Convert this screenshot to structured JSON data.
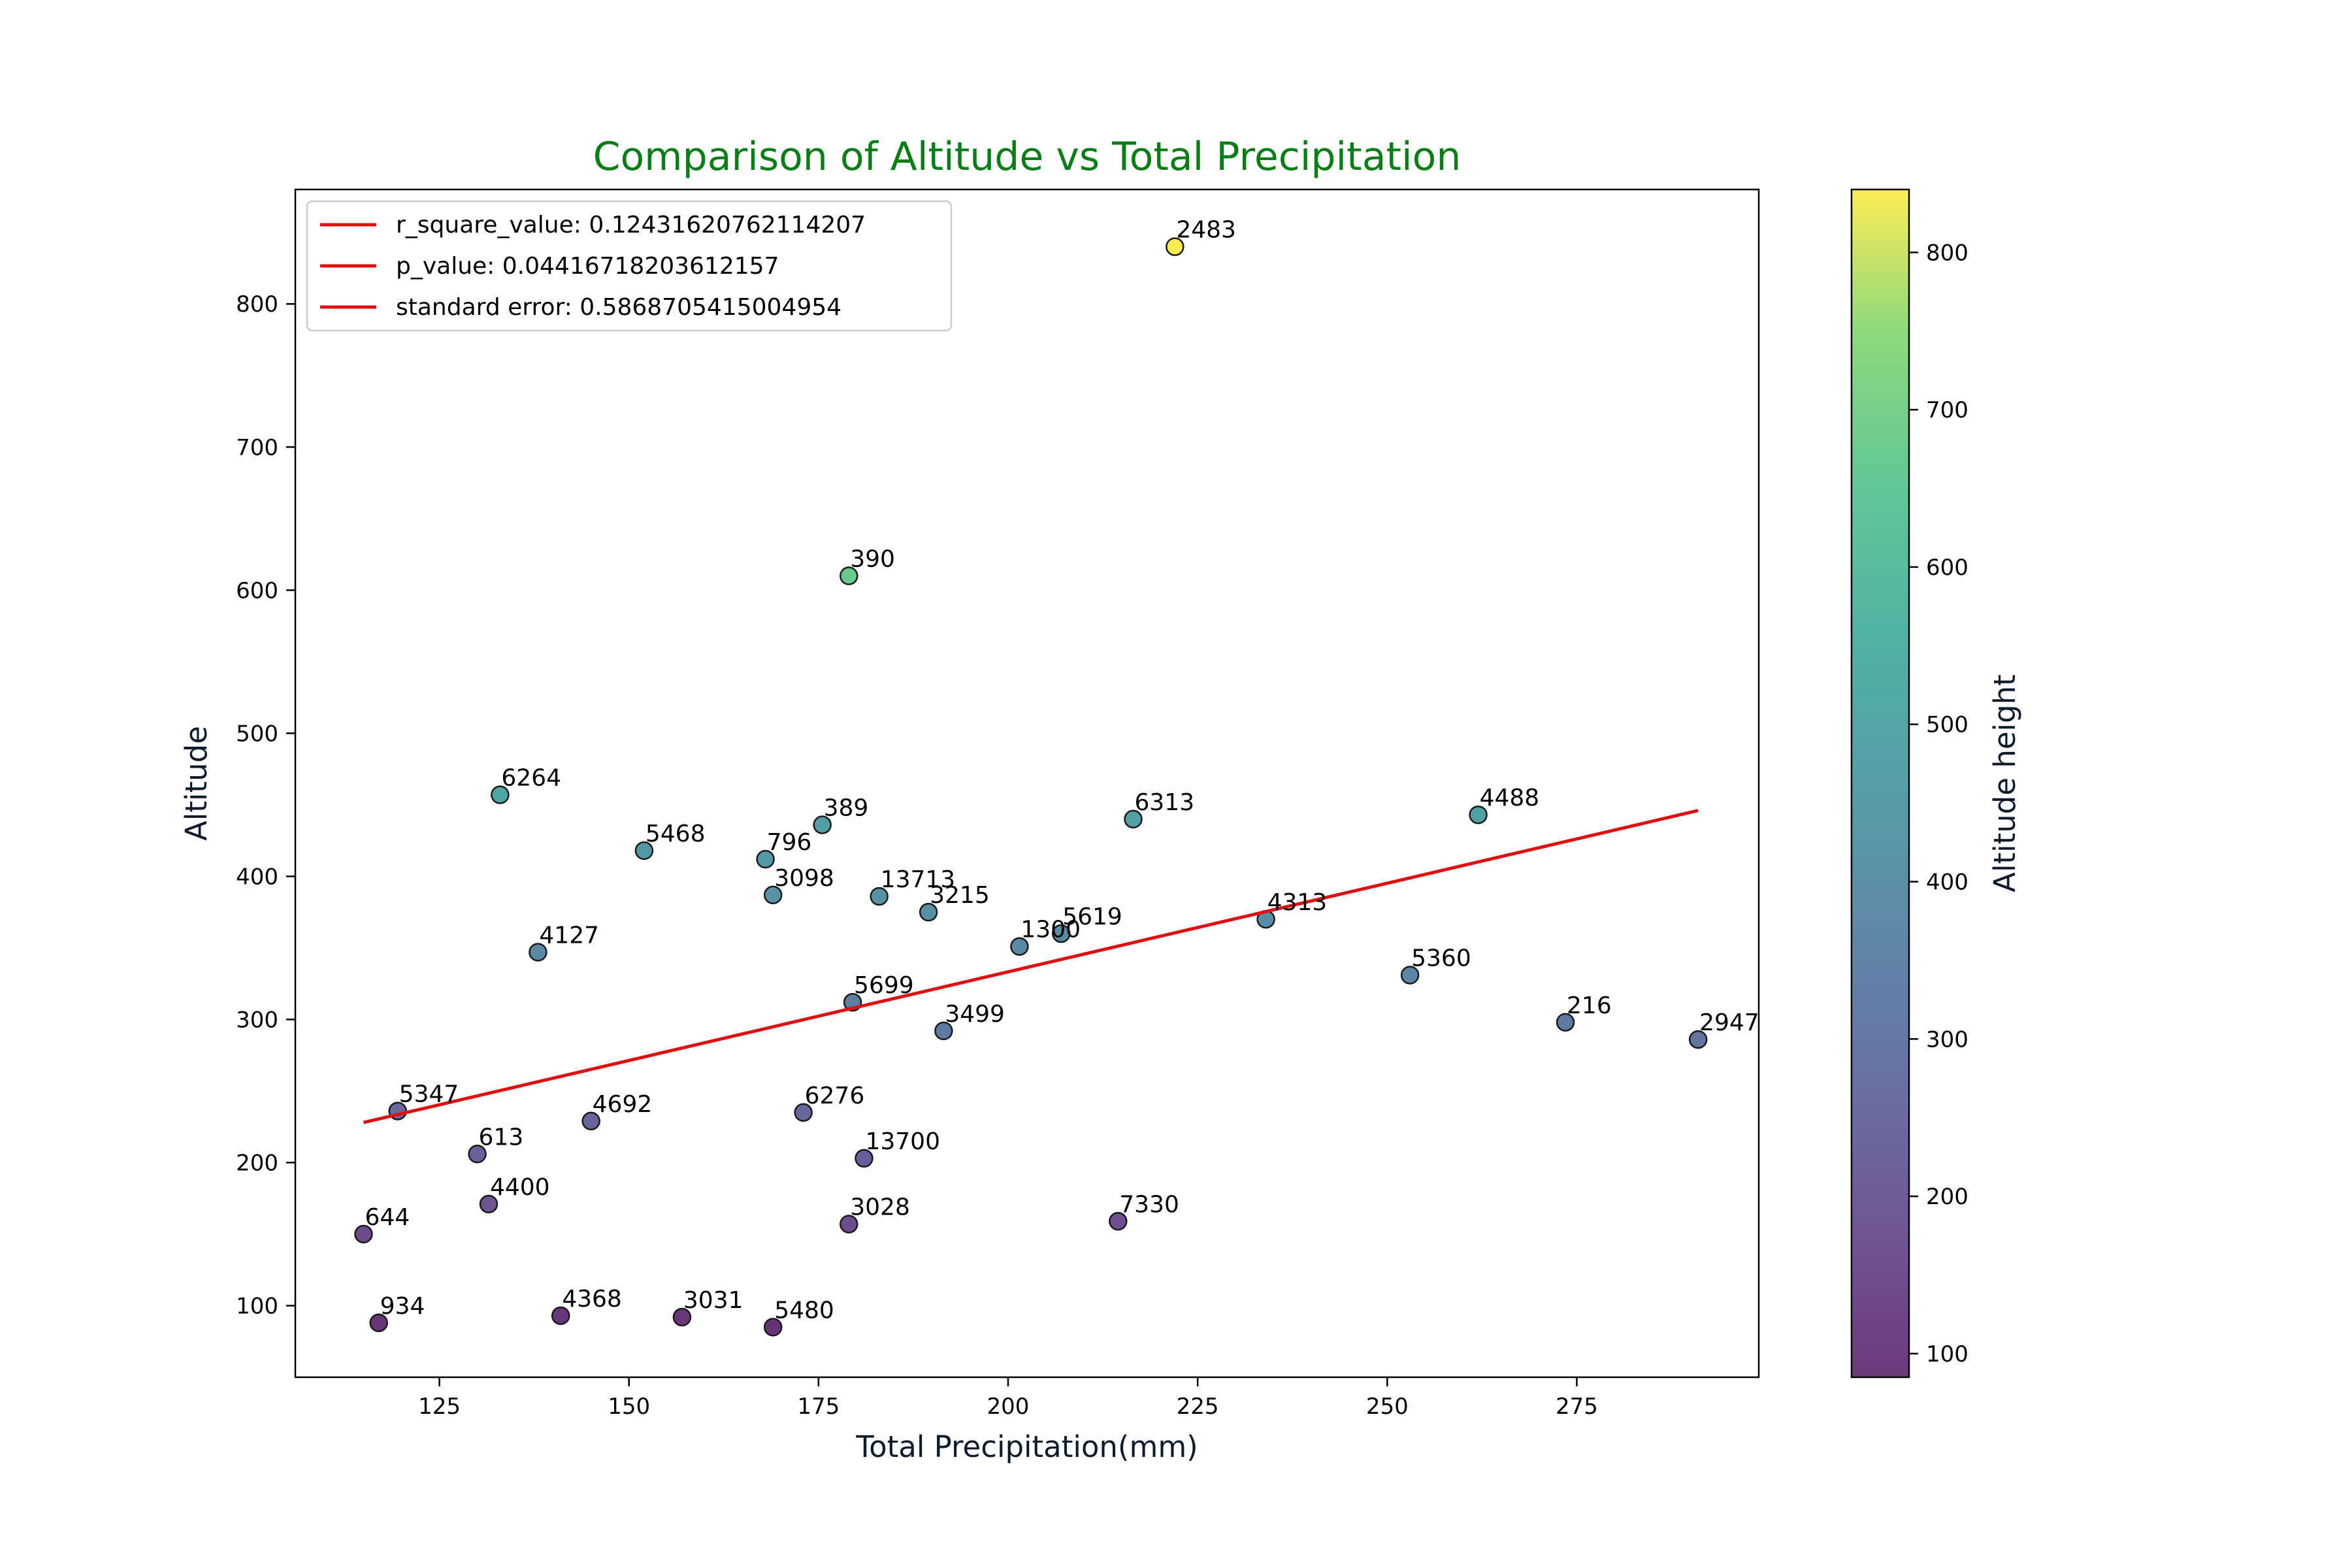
{
  "chart_data": {
    "type": "scatter",
    "title": "Comparison of Altitude vs Total Precipitation",
    "xlabel": "Total Precipitation(mm)",
    "ylabel": "Altitude",
    "xlim": [
      106,
      299
    ],
    "ylim": [
      50,
      880
    ],
    "xticks": [
      125,
      150,
      175,
      200,
      225,
      250,
      275
    ],
    "yticks": [
      100,
      200,
      300,
      400,
      500,
      600,
      700,
      800
    ],
    "colorbar": {
      "label": "Altitude height",
      "range": [
        85,
        840
      ],
      "ticks": [
        100,
        200,
        300,
        400,
        500,
        600,
        700,
        800
      ],
      "colormap": "viridis"
    },
    "points": [
      {
        "label": "2483",
        "x": 222,
        "y": 840
      },
      {
        "label": "390",
        "x": 179,
        "y": 610
      },
      {
        "label": "6264",
        "x": 133,
        "y": 457
      },
      {
        "label": "5468",
        "x": 152,
        "y": 418
      },
      {
        "label": "796",
        "x": 168,
        "y": 412
      },
      {
        "label": "389",
        "x": 175.5,
        "y": 436
      },
      {
        "label": "3098",
        "x": 169,
        "y": 387
      },
      {
        "label": "13713",
        "x": 183,
        "y": 386
      },
      {
        "label": "3215",
        "x": 189.5,
        "y": 375
      },
      {
        "label": "6313",
        "x": 216.5,
        "y": 440
      },
      {
        "label": "4488",
        "x": 262,
        "y": 443
      },
      {
        "label": "4127",
        "x": 138,
        "y": 347
      },
      {
        "label": "5619",
        "x": 207,
        "y": 360
      },
      {
        "label": "1300",
        "x": 201.5,
        "y": 351
      },
      {
        "label": "4313",
        "x": 234,
        "y": 370
      },
      {
        "label": "5360",
        "x": 253,
        "y": 331
      },
      {
        "label": "5699",
        "x": 179.5,
        "y": 312
      },
      {
        "label": "3499",
        "x": 191.5,
        "y": 292
      },
      {
        "label": "216",
        "x": 273.5,
        "y": 298
      },
      {
        "label": "2947",
        "x": 291,
        "y": 286
      },
      {
        "label": "5347",
        "x": 119.5,
        "y": 236
      },
      {
        "label": "4692",
        "x": 145,
        "y": 229
      },
      {
        "label": "6276",
        "x": 173,
        "y": 235
      },
      {
        "label": "613",
        "x": 130,
        "y": 206
      },
      {
        "label": "13700",
        "x": 181,
        "y": 203
      },
      {
        "label": "4400",
        "x": 131.5,
        "y": 171
      },
      {
        "label": "644",
        "x": 115,
        "y": 150
      },
      {
        "label": "3028",
        "x": 179,
        "y": 157
      },
      {
        "label": "7330",
        "x": 214.5,
        "y": 159
      },
      {
        "label": "934",
        "x": 117,
        "y": 88
      },
      {
        "label": "4368",
        "x": 141,
        "y": 93
      },
      {
        "label": "3031",
        "x": 157,
        "y": 92
      },
      {
        "label": "5480",
        "x": 169,
        "y": 85
      }
    ],
    "regression_line": {
      "x": [
        115,
        291
      ],
      "y": [
        228,
        446
      ]
    },
    "legend": {
      "position": "top-left",
      "entries": [
        "r_square_value: 0.12431620762114207",
        "p_value: 0.04416718203612157",
        "standard error: 0.5868705415004954"
      ],
      "line_color": "#dd1111"
    },
    "grid": false
  }
}
